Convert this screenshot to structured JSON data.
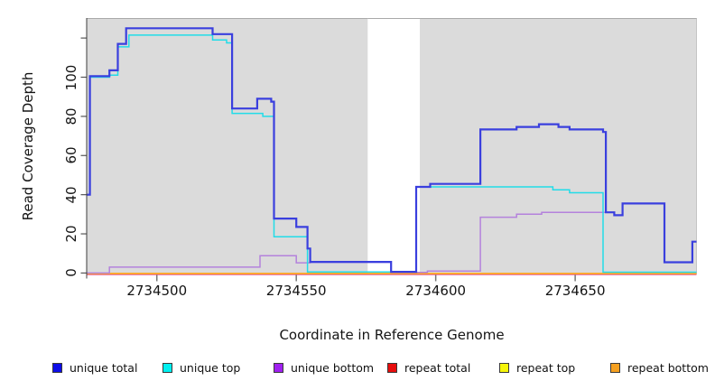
{
  "y_axis": {
    "label": "Read Coverage Depth",
    "ticks": [
      0,
      20,
      40,
      60,
      80,
      100
    ],
    "tick_labels": [
      "0",
      "20",
      "40",
      "60",
      "80",
      "100"
    ],
    "unlabeled_ticks": [
      120
    ]
  },
  "x_axis": {
    "label": "Coordinate in Reference Genome",
    "ticks": [
      2734500,
      2734550,
      2734600,
      2734650
    ],
    "tick_labels": [
      "2734500",
      "2734550",
      "2734600",
      "2734650"
    ]
  },
  "legend": {
    "items": [
      {
        "label": "unique total",
        "color": "#0d0de8"
      },
      {
        "label": "unique top",
        "color": "#00f0f0"
      },
      {
        "label": "unique bottom",
        "color": "#a020f0"
      },
      {
        "label": "repeat total",
        "color": "#e80d0d"
      },
      {
        "label": "repeat top",
        "color": "#f5f50a"
      },
      {
        "label": "repeat bottom",
        "color": "#f5a020"
      }
    ]
  },
  "chart_data": {
    "type": "line",
    "subtype": "step-coverage",
    "title": "",
    "xlabel": "Coordinate in Reference Genome",
    "ylabel": "Read Coverage Depth",
    "xlim": [
      2734475,
      2734693.5
    ],
    "ylim": [
      -0.5,
      130.2
    ],
    "grid": false,
    "legend_position": "bottom",
    "panel_background": "#dbdbdb",
    "gap_region": {
      "start": 2734575.6,
      "end": 2734594.3
    },
    "series": [
      {
        "name": "repeat total",
        "color": "#e0559b",
        "points": [
          [
            2734475,
            0
          ]
        ]
      },
      {
        "name": "repeat top",
        "color": "#f0f000",
        "points": [
          [
            2734475,
            0
          ]
        ]
      },
      {
        "name": "repeat bottom",
        "color": "#ff9d28",
        "points": [
          [
            2734475,
            0
          ]
        ]
      },
      {
        "name": "unique bottom",
        "color": "#b482dc",
        "points": [
          [
            2734475,
            0
          ],
          [
            2734483,
            3
          ],
          [
            2734537,
            8.8
          ],
          [
            2734550,
            5.2
          ],
          [
            2734555,
            5.5
          ],
          [
            2734584,
            0.3
          ],
          [
            2734597,
            1
          ],
          [
            2734616,
            28.5
          ],
          [
            2734629,
            30
          ],
          [
            2734638,
            31
          ],
          [
            2734661,
            31
          ],
          [
            2734664,
            29.5
          ],
          [
            2734667,
            35.5
          ],
          [
            2734682,
            5.5
          ],
          [
            2734692,
            16
          ]
        ]
      },
      {
        "name": "unique top",
        "color": "#22dce8",
        "points": [
          [
            2734475,
            40
          ],
          [
            2734476,
            100
          ],
          [
            2734483,
            101
          ],
          [
            2734486,
            115.5
          ],
          [
            2734490,
            121.5
          ],
          [
            2734520,
            119
          ],
          [
            2734525,
            117.5
          ],
          [
            2734527,
            81.5
          ],
          [
            2734538,
            80
          ],
          [
            2734542,
            18.5
          ],
          [
            2734554,
            0.5
          ],
          [
            2734593,
            44
          ],
          [
            2734642,
            42.5
          ],
          [
            2734648,
            41
          ],
          [
            2734660,
            0.4
          ]
        ]
      },
      {
        "name": "unique total",
        "color": "#3a3fde",
        "points": [
          [
            2734475,
            40
          ],
          [
            2734476,
            100.5
          ],
          [
            2734483,
            103.5
          ],
          [
            2734486,
            117
          ],
          [
            2734489,
            125
          ],
          [
            2734520,
            122
          ],
          [
            2734527,
            84
          ],
          [
            2734536,
            89
          ],
          [
            2734541,
            87.5
          ],
          [
            2734542,
            27.8
          ],
          [
            2734550,
            23.5
          ],
          [
            2734554,
            12.5
          ],
          [
            2734555,
            5.7
          ],
          [
            2734584,
            0.6
          ],
          [
            2734593,
            44
          ],
          [
            2734598,
            45.5
          ],
          [
            2734616,
            73.3
          ],
          [
            2734629,
            74.6
          ],
          [
            2734637,
            76
          ],
          [
            2734644,
            74.6
          ],
          [
            2734648,
            73.3
          ],
          [
            2734660,
            72
          ],
          [
            2734661,
            31
          ],
          [
            2734664,
            29.5
          ],
          [
            2734667,
            35.5
          ],
          [
            2734682,
            5.5
          ],
          [
            2734692,
            16
          ]
        ]
      }
    ]
  }
}
